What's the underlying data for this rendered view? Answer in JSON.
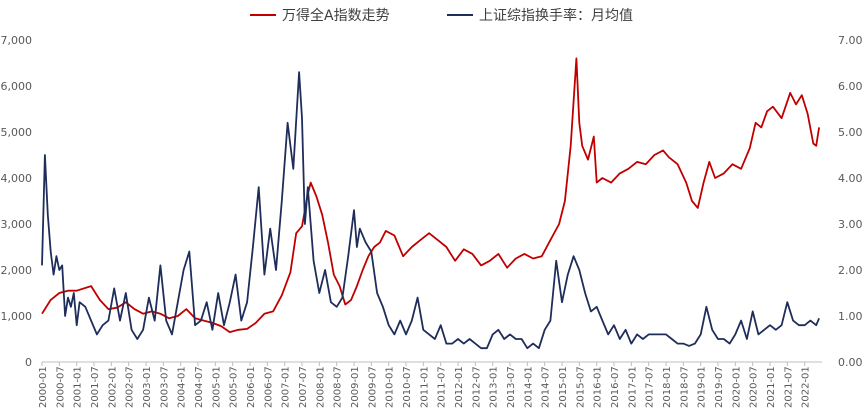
{
  "chart_data": {
    "type": "line",
    "title": "",
    "xlabel": "",
    "ylabel": "",
    "legend_position": "top-center",
    "grid": false,
    "x_tick_labels": [
      "2000-01",
      "2000-07",
      "2001-01",
      "2001-07",
      "2002-01",
      "2002-07",
      "2003-01",
      "2003-07",
      "2004-01",
      "2004-07",
      "2005-01",
      "2005-07",
      "2006-01",
      "2006-07",
      "2007-01",
      "2007-07",
      "2008-01",
      "2008-07",
      "2009-01",
      "2009-07",
      "2010-01",
      "2010-07",
      "2011-01",
      "2011-07",
      "2012-01",
      "2012-07",
      "2013-01",
      "2013-07",
      "2014-01",
      "2014-07",
      "2015-01",
      "2015-07",
      "2016-01",
      "2016-07",
      "2017-01",
      "2017-07",
      "2018-01",
      "2018-07",
      "2019-01",
      "2019-07",
      "2020-01",
      "2020-07",
      "2021-01",
      "2021-07",
      "2022-01"
    ],
    "y_left": {
      "min": 0,
      "max": 7000,
      "ticks": [
        "0",
        "1,000",
        "2,000",
        "3,000",
        "4,000",
        "5,000",
        "6,000",
        "7,000"
      ]
    },
    "y_right": {
      "min": 0,
      "max": 7,
      "ticks": [
        "0.00",
        "1.00",
        "2.00",
        "3.00",
        "4.00",
        "5.00",
        "6.00",
        "7.00"
      ]
    },
    "series": [
      {
        "name": "万得全A指数走势",
        "color": "#c00000",
        "axis": "left",
        "points": [
          [
            "2000-01",
            1050
          ],
          [
            "2000-04",
            1350
          ],
          [
            "2000-07",
            1500
          ],
          [
            "2000-10",
            1550
          ],
          [
            "2001-01",
            1550
          ],
          [
            "2001-06",
            1650
          ],
          [
            "2001-09",
            1350
          ],
          [
            "2001-12",
            1150
          ],
          [
            "2002-03",
            1180
          ],
          [
            "2002-06",
            1300
          ],
          [
            "2002-09",
            1150
          ],
          [
            "2002-12",
            1050
          ],
          [
            "2003-03",
            1100
          ],
          [
            "2003-06",
            1050
          ],
          [
            "2003-09",
            950
          ],
          [
            "2003-12",
            1000
          ],
          [
            "2004-03",
            1150
          ],
          [
            "2004-06",
            950
          ],
          [
            "2004-09",
            900
          ],
          [
            "2004-12",
            850
          ],
          [
            "2005-03",
            780
          ],
          [
            "2005-06",
            650
          ],
          [
            "2005-09",
            700
          ],
          [
            "2005-12",
            720
          ],
          [
            "2006-03",
            850
          ],
          [
            "2006-06",
            1050
          ],
          [
            "2006-09",
            1100
          ],
          [
            "2006-12",
            1450
          ],
          [
            "2007-03",
            1950
          ],
          [
            "2007-05",
            2800
          ],
          [
            "2007-07",
            2950
          ],
          [
            "2007-09",
            3650
          ],
          [
            "2007-10",
            3900
          ],
          [
            "2007-12",
            3600
          ],
          [
            "2008-02",
            3200
          ],
          [
            "2008-04",
            2600
          ],
          [
            "2008-06",
            1900
          ],
          [
            "2008-08",
            1650
          ],
          [
            "2008-10",
            1250
          ],
          [
            "2008-12",
            1350
          ],
          [
            "2009-02",
            1650
          ],
          [
            "2009-04",
            2000
          ],
          [
            "2009-06",
            2300
          ],
          [
            "2009-08",
            2500
          ],
          [
            "2009-10",
            2600
          ],
          [
            "2009-12",
            2850
          ],
          [
            "2010-03",
            2750
          ],
          [
            "2010-06",
            2300
          ],
          [
            "2010-09",
            2500
          ],
          [
            "2010-12",
            2650
          ],
          [
            "2011-03",
            2800
          ],
          [
            "2011-06",
            2650
          ],
          [
            "2011-09",
            2500
          ],
          [
            "2011-12",
            2200
          ],
          [
            "2012-03",
            2450
          ],
          [
            "2012-06",
            2350
          ],
          [
            "2012-09",
            2100
          ],
          [
            "2012-12",
            2200
          ],
          [
            "2013-03",
            2350
          ],
          [
            "2013-06",
            2050
          ],
          [
            "2013-09",
            2250
          ],
          [
            "2013-12",
            2350
          ],
          [
            "2014-03",
            2250
          ],
          [
            "2014-06",
            2300
          ],
          [
            "2014-09",
            2650
          ],
          [
            "2014-12",
            3000
          ],
          [
            "2015-02",
            3500
          ],
          [
            "2015-04",
            4700
          ],
          [
            "2015-06",
            6600
          ],
          [
            "2015-07",
            5200
          ],
          [
            "2015-08",
            4700
          ],
          [
            "2015-10",
            4400
          ],
          [
            "2015-12",
            4900
          ],
          [
            "2016-01",
            3900
          ],
          [
            "2016-03",
            4000
          ],
          [
            "2016-06",
            3900
          ],
          [
            "2016-09",
            4100
          ],
          [
            "2016-12",
            4200
          ],
          [
            "2017-03",
            4350
          ],
          [
            "2017-06",
            4300
          ],
          [
            "2017-09",
            4500
          ],
          [
            "2017-12",
            4600
          ],
          [
            "2018-02",
            4450
          ],
          [
            "2018-05",
            4300
          ],
          [
            "2018-08",
            3900
          ],
          [
            "2018-10",
            3500
          ],
          [
            "2018-12",
            3350
          ],
          [
            "2019-02",
            3900
          ],
          [
            "2019-04",
            4350
          ],
          [
            "2019-06",
            4000
          ],
          [
            "2019-09",
            4100
          ],
          [
            "2019-12",
            4300
          ],
          [
            "2020-03",
            4200
          ],
          [
            "2020-06",
            4650
          ],
          [
            "2020-08",
            5200
          ],
          [
            "2020-10",
            5100
          ],
          [
            "2020-12",
            5450
          ],
          [
            "2021-02",
            5550
          ],
          [
            "2021-05",
            5300
          ],
          [
            "2021-08",
            5850
          ],
          [
            "2021-10",
            5600
          ],
          [
            "2021-12",
            5800
          ],
          [
            "2022-02",
            5400
          ],
          [
            "2022-04",
            4750
          ],
          [
            "2022-05",
            4700
          ],
          [
            "2022-06",
            5100
          ]
        ]
      },
      {
        "name": "上证综指换手率：月均值",
        "color": "#1f2d5a",
        "axis": "right",
        "points": [
          [
            "2000-01",
            2.1
          ],
          [
            "2000-02",
            4.5
          ],
          [
            "2000-03",
            3.2
          ],
          [
            "2000-04",
            2.4
          ],
          [
            "2000-05",
            1.9
          ],
          [
            "2000-06",
            2.3
          ],
          [
            "2000-07",
            2.0
          ],
          [
            "2000-08",
            2.1
          ],
          [
            "2000-09",
            1.0
          ],
          [
            "2000-10",
            1.4
          ],
          [
            "2000-11",
            1.2
          ],
          [
            "2000-12",
            1.5
          ],
          [
            "2001-01",
            0.8
          ],
          [
            "2001-02",
            1.3
          ],
          [
            "2001-04",
            1.2
          ],
          [
            "2001-06",
            0.9
          ],
          [
            "2001-08",
            0.6
          ],
          [
            "2001-10",
            0.8
          ],
          [
            "2001-12",
            0.9
          ],
          [
            "2002-02",
            1.6
          ],
          [
            "2002-04",
            0.9
          ],
          [
            "2002-06",
            1.5
          ],
          [
            "2002-08",
            0.7
          ],
          [
            "2002-10",
            0.5
          ],
          [
            "2002-12",
            0.7
          ],
          [
            "2003-02",
            1.4
          ],
          [
            "2003-04",
            0.9
          ],
          [
            "2003-06",
            2.1
          ],
          [
            "2003-08",
            0.9
          ],
          [
            "2003-10",
            0.6
          ],
          [
            "2003-12",
            1.3
          ],
          [
            "2004-02",
            2.0
          ],
          [
            "2004-04",
            2.4
          ],
          [
            "2004-06",
            0.8
          ],
          [
            "2004-08",
            0.9
          ],
          [
            "2004-10",
            1.3
          ],
          [
            "2004-12",
            0.7
          ],
          [
            "2005-02",
            1.5
          ],
          [
            "2005-04",
            0.8
          ],
          [
            "2005-06",
            1.3
          ],
          [
            "2005-08",
            1.9
          ],
          [
            "2005-10",
            0.9
          ],
          [
            "2005-12",
            1.3
          ],
          [
            "2006-02",
            2.5
          ],
          [
            "2006-04",
            3.8
          ],
          [
            "2006-06",
            1.9
          ],
          [
            "2006-08",
            2.9
          ],
          [
            "2006-10",
            2.0
          ],
          [
            "2006-12",
            3.5
          ],
          [
            "2007-02",
            5.2
          ],
          [
            "2007-04",
            4.2
          ],
          [
            "2007-06",
            6.3
          ],
          [
            "2007-07",
            5.3
          ],
          [
            "2007-08",
            3.0
          ],
          [
            "2007-09",
            3.8
          ],
          [
            "2007-11",
            2.2
          ],
          [
            "2008-01",
            1.5
          ],
          [
            "2008-03",
            2.0
          ],
          [
            "2008-05",
            1.3
          ],
          [
            "2008-07",
            1.2
          ],
          [
            "2008-09",
            1.4
          ],
          [
            "2008-11",
            2.3
          ],
          [
            "2009-01",
            3.3
          ],
          [
            "2009-02",
            2.5
          ],
          [
            "2009-03",
            2.9
          ],
          [
            "2009-05",
            2.6
          ],
          [
            "2009-07",
            2.4
          ],
          [
            "2009-09",
            1.5
          ],
          [
            "2009-11",
            1.2
          ],
          [
            "2010-01",
            0.8
          ],
          [
            "2010-03",
            0.6
          ],
          [
            "2010-05",
            0.9
          ],
          [
            "2010-07",
            0.6
          ],
          [
            "2010-09",
            0.9
          ],
          [
            "2010-11",
            1.4
          ],
          [
            "2011-01",
            0.7
          ],
          [
            "2011-03",
            0.6
          ],
          [
            "2011-05",
            0.5
          ],
          [
            "2011-07",
            0.8
          ],
          [
            "2011-09",
            0.4
          ],
          [
            "2011-11",
            0.4
          ],
          [
            "2012-01",
            0.5
          ],
          [
            "2012-03",
            0.4
          ],
          [
            "2012-05",
            0.5
          ],
          [
            "2012-07",
            0.4
          ],
          [
            "2012-09",
            0.3
          ],
          [
            "2012-11",
            0.3
          ],
          [
            "2013-01",
            0.6
          ],
          [
            "2013-03",
            0.7
          ],
          [
            "2013-05",
            0.5
          ],
          [
            "2013-07",
            0.6
          ],
          [
            "2013-09",
            0.5
          ],
          [
            "2013-11",
            0.5
          ],
          [
            "2014-01",
            0.3
          ],
          [
            "2014-03",
            0.4
          ],
          [
            "2014-05",
            0.3
          ],
          [
            "2014-07",
            0.7
          ],
          [
            "2014-09",
            0.9
          ],
          [
            "2014-11",
            2.2
          ],
          [
            "2015-01",
            1.3
          ],
          [
            "2015-03",
            1.9
          ],
          [
            "2015-05",
            2.3
          ],
          [
            "2015-07",
            2.0
          ],
          [
            "2015-09",
            1.5
          ],
          [
            "2015-11",
            1.1
          ],
          [
            "2016-01",
            1.2
          ],
          [
            "2016-03",
            0.9
          ],
          [
            "2016-05",
            0.6
          ],
          [
            "2016-07",
            0.8
          ],
          [
            "2016-09",
            0.5
          ],
          [
            "2016-11",
            0.7
          ],
          [
            "2017-01",
            0.4
          ],
          [
            "2017-03",
            0.6
          ],
          [
            "2017-05",
            0.5
          ],
          [
            "2017-07",
            0.6
          ],
          [
            "2017-09",
            0.6
          ],
          [
            "2017-11",
            0.6
          ],
          [
            "2018-01",
            0.6
          ],
          [
            "2018-03",
            0.5
          ],
          [
            "2018-05",
            0.4
          ],
          [
            "2018-07",
            0.4
          ],
          [
            "2018-09",
            0.35
          ],
          [
            "2018-11",
            0.4
          ],
          [
            "2019-01",
            0.6
          ],
          [
            "2019-03",
            1.2
          ],
          [
            "2019-05",
            0.7
          ],
          [
            "2019-07",
            0.5
          ],
          [
            "2019-09",
            0.5
          ],
          [
            "2019-11",
            0.4
          ],
          [
            "2020-01",
            0.6
          ],
          [
            "2020-03",
            0.9
          ],
          [
            "2020-05",
            0.5
          ],
          [
            "2020-07",
            1.1
          ],
          [
            "2020-09",
            0.6
          ],
          [
            "2020-11",
            0.7
          ],
          [
            "2021-01",
            0.8
          ],
          [
            "2021-03",
            0.7
          ],
          [
            "2021-05",
            0.8
          ],
          [
            "2021-07",
            1.3
          ],
          [
            "2021-09",
            0.9
          ],
          [
            "2021-11",
            0.8
          ],
          [
            "2022-01",
            0.8
          ],
          [
            "2022-03",
            0.9
          ],
          [
            "2022-05",
            0.8
          ],
          [
            "2022-06",
            0.95
          ]
        ]
      }
    ]
  }
}
